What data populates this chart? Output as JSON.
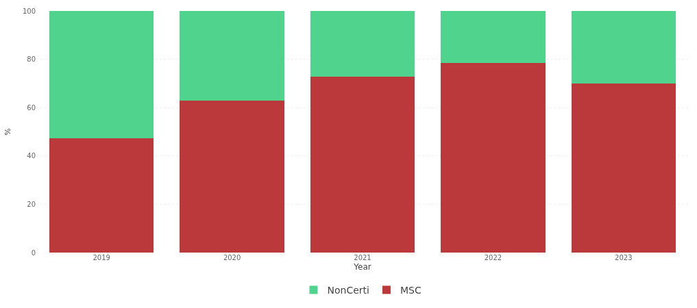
{
  "chart_data": {
    "type": "bar",
    "stacked": true,
    "xlabel": "Year",
    "ylabel": "%",
    "categories": [
      "2019",
      "2020",
      "2021",
      "2022",
      "2023"
    ],
    "series": [
      {
        "name": "MSC",
        "color": "#bb393b",
        "values": [
          47.4,
          62.8,
          72.9,
          78.6,
          70.1
        ]
      },
      {
        "name": "NonCerti",
        "color": "#4fd38d",
        "values": [
          52.6,
          37.2,
          27.1,
          21.4,
          29.9
        ]
      }
    ],
    "ylim": [
      0,
      100
    ],
    "yticks": [
      0,
      20,
      40,
      60,
      80,
      100
    ],
    "grid": "y",
    "legend": "bottom"
  }
}
